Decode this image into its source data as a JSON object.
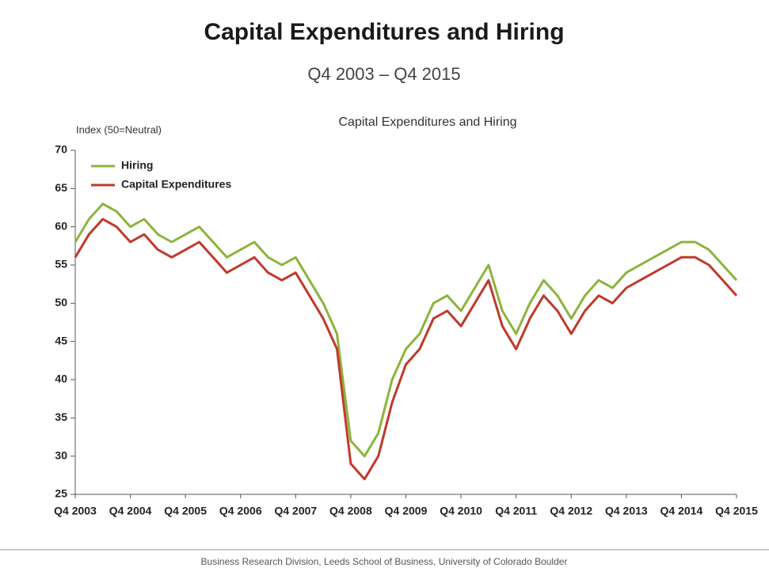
{
  "chart_data": {
    "type": "line",
    "title": "Capital Expenditures and Hiring",
    "subtitle": "Q4 2003 – Q4 2015",
    "chart_title": "Capital Expenditures and Hiring",
    "y_label": "Index (50=Neutral)",
    "footer": "Business Research Division, Leeds School of Business, University of Colorado Boulder",
    "categories": [
      "Q4 2003",
      null,
      null,
      null,
      "Q4 2004",
      null,
      null,
      null,
      "Q4 2005",
      null,
      null,
      null,
      "Q4 2006",
      null,
      null,
      null,
      "Q4 2007",
      null,
      null,
      null,
      "Q4 2008",
      null,
      null,
      null,
      "Q4 2009",
      null,
      null,
      null,
      "Q4 2010",
      null,
      null,
      null,
      "Q4 2011",
      null,
      null,
      null,
      "Q4 2012",
      null,
      null,
      null,
      "Q4 2013",
      null,
      null,
      null,
      "Q4 2014",
      null,
      null,
      null,
      "Q4 2015"
    ],
    "series": [
      {
        "name": "Hiring",
        "color": "#8cb43c",
        "values": [
          58,
          61,
          63,
          62,
          60,
          61,
          59,
          58,
          59,
          60,
          58,
          56,
          57,
          58,
          56,
          55,
          56,
          53,
          50,
          46,
          32,
          30,
          33,
          40,
          44,
          46,
          50,
          51,
          49,
          52,
          55,
          49,
          46,
          50,
          53,
          51,
          48,
          51,
          53,
          52,
          54,
          55,
          56,
          57,
          58,
          58,
          57,
          55,
          53
        ]
      },
      {
        "name": "Capital Expenditures",
        "color": "#c0392b",
        "values": [
          56,
          59,
          61,
          60,
          58,
          59,
          57,
          56,
          57,
          58,
          56,
          54,
          55,
          56,
          54,
          53,
          54,
          51,
          48,
          44,
          29,
          27,
          30,
          37,
          42,
          44,
          48,
          49,
          47,
          50,
          53,
          47,
          44,
          48,
          51,
          49,
          46,
          49,
          51,
          50,
          52,
          53,
          54,
          55,
          56,
          56,
          55,
          53,
          51
        ]
      }
    ],
    "ylim": [
      25,
      70
    ],
    "yticks": [
      25,
      30,
      35,
      40,
      45,
      50,
      55,
      60,
      65,
      70
    ],
    "grid": false
  }
}
